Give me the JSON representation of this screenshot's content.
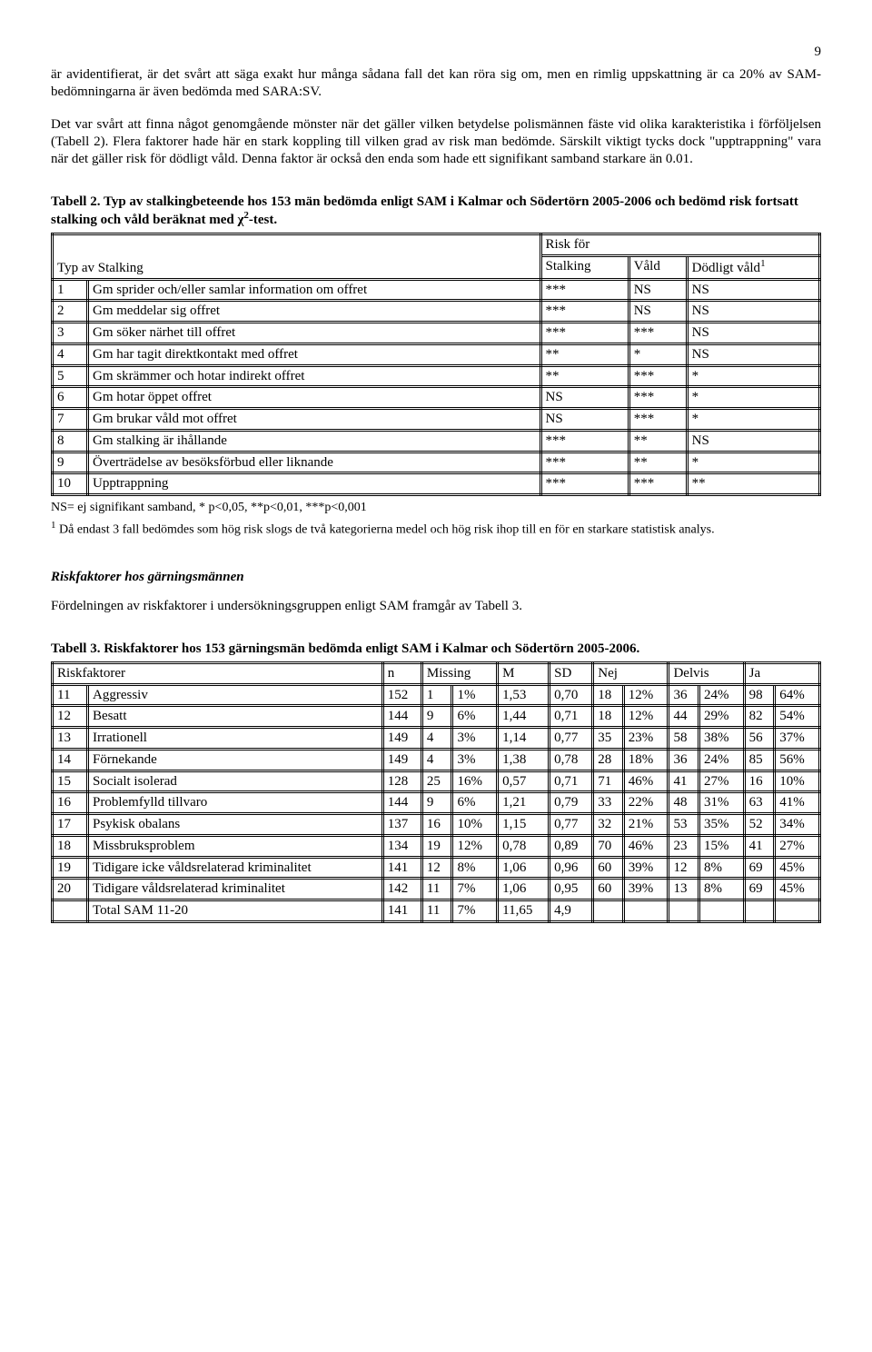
{
  "page_number": "9",
  "para1": "är avidentifierat, är det svårt att säga exakt hur många sådana fall det kan röra sig om, men en rimlig uppskattning är ca 20% av SAM-bedömningarna är även bedömda med SARA:SV.",
  "para2": "Det var svårt att finna något genomgående mönster när det gäller vilken betydelse polismännen fäste vid olika karakteristika i förföljelsen (Tabell 2). Flera faktorer hade här en stark koppling till vilken grad av risk man bedömde. Särskilt viktigt tycks dock \"upptrappning\" vara när det gäller risk för dödligt våld. Denna faktor är också den enda som hade ett signifikant samband starkare än 0.01.",
  "table2": {
    "title_prefix": "Tabell 2. Typ av stalkingbeteende hos 153 män bedömda enligt SAM i Kalmar och Södertörn 2005-2006 och bedömd risk fortsatt stalking och våld beräknat med ",
    "title_suffix": "-test.",
    "header_type": "Typ av Stalking",
    "header_risk": "Risk för",
    "header_stalking": "Stalking",
    "header_vald": "Våld",
    "header_dod": "Dödligt våld",
    "rows": [
      {
        "n": "1",
        "label": "Gm sprider och/eller samlar information om offret",
        "s": "***",
        "v": "NS",
        "d": "NS"
      },
      {
        "n": "2",
        "label": "Gm meddelar sig offret",
        "s": "***",
        "v": "NS",
        "d": "NS"
      },
      {
        "n": "3",
        "label": "Gm söker närhet till offret",
        "s": "***",
        "v": "***",
        "d": "NS"
      },
      {
        "n": "4",
        "label": "Gm har tagit direktkontakt med offret",
        "s": "**",
        "v": "*",
        "d": "NS"
      },
      {
        "n": "5",
        "label": "Gm skrämmer och hotar indirekt offret",
        "s": "**",
        "v": "***",
        "d": "*"
      },
      {
        "n": "6",
        "label": "Gm hotar öppet offret",
        "s": "NS",
        "v": "***",
        "d": "*"
      },
      {
        "n": "7",
        "label": "Gm brukar våld mot offret",
        "s": "NS",
        "v": "***",
        "d": "*"
      },
      {
        "n": "8",
        "label": "Gm stalking är ihållande",
        "s": "***",
        "v": "**",
        "d": "NS"
      },
      {
        "n": "9",
        "label": "Överträdelse av besöksförbud eller liknande",
        "s": "***",
        "v": "**",
        "d": "*"
      },
      {
        "n": "10",
        "label": "Upptrappning",
        "s": "***",
        "v": "***",
        "d": "**"
      }
    ],
    "footnote1": "NS= ej signifikant samband, * p<0,05, **p<0,01, ***p<0,001",
    "footnote2": " Då endast 3 fall bedömdes som hög risk slogs de två kategorierna medel och hög risk ihop till en för en starkare statistisk analys."
  },
  "subhead1": "Riskfaktorer hos gärningsmännen",
  "para3": "Fördelningen av riskfaktorer i undersökningsgruppen enligt SAM framgår av Tabell 3.",
  "table3": {
    "title": "Tabell 3. Riskfaktorer hos 153 gärningsmän bedömda enligt SAM i Kalmar och Södertörn 2005-2006.",
    "h_risk": "Riskfaktorer",
    "h_n": "n",
    "h_miss": "Missing",
    "h_m": "M",
    "h_sd": "SD",
    "h_nej": "Nej",
    "h_delvis": "Delvis",
    "h_ja": "Ja",
    "rows": [
      {
        "n": "11",
        "label": "Aggressiv",
        "nn": "152",
        "miss_n": "1",
        "miss_p": "1%",
        "m": "1,53",
        "sd": "0,70",
        "nej_n": "18",
        "nej_p": "12%",
        "del_n": "36",
        "del_p": "24%",
        "ja_n": "98",
        "ja_p": "64%"
      },
      {
        "n": "12",
        "label": "Besatt",
        "nn": "144",
        "miss_n": "9",
        "miss_p": "6%",
        "m": "1,44",
        "sd": "0,71",
        "nej_n": "18",
        "nej_p": "12%",
        "del_n": "44",
        "del_p": "29%",
        "ja_n": "82",
        "ja_p": "54%"
      },
      {
        "n": "13",
        "label": "Irrationell",
        "nn": "149",
        "miss_n": "4",
        "miss_p": "3%",
        "m": "1,14",
        "sd": "0,77",
        "nej_n": "35",
        "nej_p": "23%",
        "del_n": "58",
        "del_p": "38%",
        "ja_n": "56",
        "ja_p": "37%"
      },
      {
        "n": "14",
        "label": "Förnekande",
        "nn": "149",
        "miss_n": "4",
        "miss_p": "3%",
        "m": "1,38",
        "sd": "0,78",
        "nej_n": "28",
        "nej_p": "18%",
        "del_n": "36",
        "del_p": "24%",
        "ja_n": "85",
        "ja_p": "56%"
      },
      {
        "n": "15",
        "label": "Socialt isolerad",
        "nn": "128",
        "miss_n": "25",
        "miss_p": "16%",
        "m": "0,57",
        "sd": "0,71",
        "nej_n": "71",
        "nej_p": "46%",
        "del_n": "41",
        "del_p": "27%",
        "ja_n": "16",
        "ja_p": "10%"
      },
      {
        "n": "16",
        "label": "Problemfylld tillvaro",
        "nn": "144",
        "miss_n": "9",
        "miss_p": "6%",
        "m": "1,21",
        "sd": "0,79",
        "nej_n": "33",
        "nej_p": "22%",
        "del_n": "48",
        "del_p": "31%",
        "ja_n": "63",
        "ja_p": "41%"
      },
      {
        "n": "17",
        "label": "Psykisk obalans",
        "nn": "137",
        "miss_n": "16",
        "miss_p": "10%",
        "m": "1,15",
        "sd": "0,77",
        "nej_n": "32",
        "nej_p": "21%",
        "del_n": "53",
        "del_p": "35%",
        "ja_n": "52",
        "ja_p": "34%"
      },
      {
        "n": "18",
        "label": "Missbruksproblem",
        "nn": "134",
        "miss_n": "19",
        "miss_p": "12%",
        "m": "0,78",
        "sd": "0,89",
        "nej_n": "70",
        "nej_p": "46%",
        "del_n": "23",
        "del_p": "15%",
        "ja_n": "41",
        "ja_p": "27%"
      },
      {
        "n": "19",
        "label": "Tidigare icke våldsrelaterad kriminalitet",
        "nn": "141",
        "miss_n": "12",
        "miss_p": "8%",
        "m": "1,06",
        "sd": "0,96",
        "nej_n": "60",
        "nej_p": "39%",
        "del_n": "12",
        "del_p": "8%",
        "ja_n": "69",
        "ja_p": "45%"
      },
      {
        "n": "20",
        "label": "Tidigare våldsrelaterad kriminalitet",
        "nn": "142",
        "miss_n": "11",
        "miss_p": "7%",
        "m": "1,06",
        "sd": "0,95",
        "nej_n": "60",
        "nej_p": "39%",
        "del_n": "13",
        "del_p": "8%",
        "ja_n": "69",
        "ja_p": "45%"
      }
    ],
    "total_label": "Total SAM 11-20",
    "total_n": "141",
    "total_miss_n": "11",
    "total_miss_p": "7%",
    "total_m": "11,65",
    "total_sd": "4,9"
  }
}
